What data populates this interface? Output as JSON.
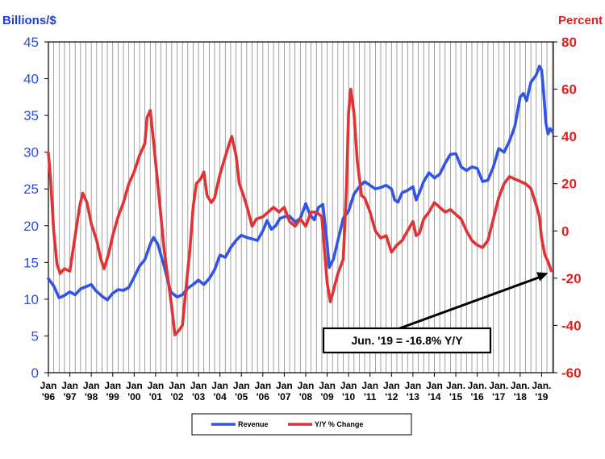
{
  "chart_data": {
    "type": "line",
    "left_axis": {
      "label": "Billions/$",
      "ylim": [
        0,
        45
      ],
      "ticks": [
        "0",
        "5",
        "10",
        "15",
        "20",
        "25",
        "30",
        "35",
        "40",
        "45"
      ]
    },
    "right_axis": {
      "label": "Percent",
      "ylim": [
        -60,
        80
      ],
      "ticks": [
        "-60",
        "-40",
        "-20",
        "0",
        "20",
        "40",
        "60",
        "80"
      ]
    },
    "xlim": [
      1996.0,
      2019.55
    ],
    "x_ticks": [
      {
        "l1": "Jan",
        "l2": "'96",
        "x": 1996
      },
      {
        "l1": "Jan",
        "l2": "'97",
        "x": 1997
      },
      {
        "l1": "Jan",
        "l2": "'98",
        "x": 1998
      },
      {
        "l1": "Jan",
        "l2": "'99",
        "x": 1999
      },
      {
        "l1": "Jan",
        "l2": "'00",
        "x": 2000
      },
      {
        "l1": "Jan",
        "l2": "'01",
        "x": 2001
      },
      {
        "l1": "Jan",
        "l2": "'02",
        "x": 2002
      },
      {
        "l1": "Jan",
        "l2": "'03",
        "x": 2003
      },
      {
        "l1": "Jan",
        "l2": "'04",
        "x": 2004
      },
      {
        "l1": "Jan",
        "l2": "'05",
        "x": 2005
      },
      {
        "l1": "Jan",
        "l2": "'06",
        "x": 2006
      },
      {
        "l1": "Jan",
        "l2": "'07",
        "x": 2007
      },
      {
        "l1": "Jan",
        "l2": "'08",
        "x": 2008
      },
      {
        "l1": "Jan",
        "l2": "'09",
        "x": 2009
      },
      {
        "l1": "Jan",
        "l2": "'10",
        "x": 2010
      },
      {
        "l1": "Jan",
        "l2": "'11",
        "x": 2011
      },
      {
        "l1": "Jan",
        "l2": "'12",
        "x": 2012
      },
      {
        "l1": "Jan",
        "l2": "'13",
        "x": 2013
      },
      {
        "l1": "Jan",
        "l2": "'14",
        "x": 2014
      },
      {
        "l1": "Jan.",
        "l2": "'15",
        "x": 2015
      },
      {
        "l1": "Jan.",
        "l2": "'16",
        "x": 2016
      },
      {
        "l1": "Jan.",
        "l2": "'17",
        "x": 2017
      },
      {
        "l1": "Jan.",
        "l2": "'18",
        "x": 2018
      },
      {
        "l1": "Jan.",
        "l2": "'19",
        "x": 2019
      }
    ],
    "grid": "vertical gridlines at each quarter",
    "legend_placement": "bottom-center",
    "series": [
      {
        "name": "Revenue",
        "axis": "left",
        "color": "#3355e6",
        "points": [
          [
            1996.0,
            12.8
          ],
          [
            1996.25,
            11.8
          ],
          [
            1996.5,
            10.2
          ],
          [
            1996.75,
            10.5
          ],
          [
            1997.0,
            11.0
          ],
          [
            1997.25,
            10.6
          ],
          [
            1997.5,
            11.4
          ],
          [
            1997.75,
            11.7
          ],
          [
            1998.0,
            12.0
          ],
          [
            1998.2,
            11.2
          ],
          [
            1998.5,
            10.4
          ],
          [
            1998.75,
            9.9
          ],
          [
            1999.0,
            10.8
          ],
          [
            1999.25,
            11.3
          ],
          [
            1999.5,
            11.2
          ],
          [
            1999.75,
            11.6
          ],
          [
            2000.0,
            13.0
          ],
          [
            2000.25,
            14.5
          ],
          [
            2000.5,
            15.4
          ],
          [
            2000.75,
            17.5
          ],
          [
            2000.9,
            18.4
          ],
          [
            2001.1,
            17.5
          ],
          [
            2001.4,
            14.5
          ],
          [
            2001.7,
            11.0
          ],
          [
            2002.0,
            10.3
          ],
          [
            2002.25,
            10.6
          ],
          [
            2002.5,
            11.5
          ],
          [
            2002.75,
            12.0
          ],
          [
            2003.0,
            12.6
          ],
          [
            2003.25,
            12.0
          ],
          [
            2003.5,
            12.8
          ],
          [
            2003.75,
            14.0
          ],
          [
            2004.0,
            16.0
          ],
          [
            2004.25,
            15.7
          ],
          [
            2004.5,
            17.0
          ],
          [
            2004.75,
            18.0
          ],
          [
            2005.0,
            18.7
          ],
          [
            2005.25,
            18.4
          ],
          [
            2005.5,
            18.2
          ],
          [
            2005.75,
            18.0
          ],
          [
            2006.0,
            19.3
          ],
          [
            2006.2,
            20.7
          ],
          [
            2006.4,
            19.5
          ],
          [
            2006.6,
            20.0
          ],
          [
            2006.8,
            21.0
          ],
          [
            2007.0,
            21.2
          ],
          [
            2007.25,
            21.3
          ],
          [
            2007.5,
            20.5
          ],
          [
            2007.75,
            21.0
          ],
          [
            2008.0,
            23.0
          ],
          [
            2008.2,
            21.5
          ],
          [
            2008.4,
            20.8
          ],
          [
            2008.6,
            22.5
          ],
          [
            2008.8,
            22.9
          ],
          [
            2009.0,
            17.5
          ],
          [
            2009.1,
            14.3
          ],
          [
            2009.3,
            15.5
          ],
          [
            2009.5,
            18.0
          ],
          [
            2009.75,
            21.0
          ],
          [
            2010.0,
            22.0
          ],
          [
            2010.25,
            24.3
          ],
          [
            2010.5,
            25.3
          ],
          [
            2010.75,
            26.0
          ],
          [
            2011.0,
            25.5
          ],
          [
            2011.25,
            25.0
          ],
          [
            2011.5,
            25.2
          ],
          [
            2011.75,
            25.5
          ],
          [
            2012.0,
            25.0
          ],
          [
            2012.15,
            23.5
          ],
          [
            2012.3,
            23.2
          ],
          [
            2012.5,
            24.5
          ],
          [
            2012.75,
            24.8
          ],
          [
            2013.0,
            25.3
          ],
          [
            2013.15,
            23.5
          ],
          [
            2013.3,
            24.5
          ],
          [
            2013.5,
            26.0
          ],
          [
            2013.75,
            27.2
          ],
          [
            2014.0,
            26.5
          ],
          [
            2014.25,
            27.0
          ],
          [
            2014.5,
            28.5
          ],
          [
            2014.75,
            29.7
          ],
          [
            2015.0,
            29.8
          ],
          [
            2015.25,
            28.0
          ],
          [
            2015.5,
            27.5
          ],
          [
            2015.75,
            28.0
          ],
          [
            2016.0,
            27.8
          ],
          [
            2016.25,
            26.0
          ],
          [
            2016.5,
            26.2
          ],
          [
            2016.75,
            28.0
          ],
          [
            2017.0,
            30.5
          ],
          [
            2017.25,
            30.0
          ],
          [
            2017.5,
            31.5
          ],
          [
            2017.75,
            33.5
          ],
          [
            2018.0,
            37.5
          ],
          [
            2018.15,
            38.0
          ],
          [
            2018.3,
            37.0
          ],
          [
            2018.5,
            39.5
          ],
          [
            2018.75,
            40.5
          ],
          [
            2018.9,
            41.7
          ],
          [
            2019.0,
            41.2
          ],
          [
            2019.1,
            38.0
          ],
          [
            2019.2,
            34.0
          ],
          [
            2019.3,
            32.5
          ],
          [
            2019.4,
            33.2
          ],
          [
            2019.5,
            32.8
          ]
        ]
      },
      {
        "name": "Y/Y % Change",
        "axis": "right",
        "color": "#e03333",
        "points": [
          [
            1996.0,
            33
          ],
          [
            1996.1,
            22
          ],
          [
            1996.25,
            0
          ],
          [
            1996.4,
            -14
          ],
          [
            1996.55,
            -18
          ],
          [
            1996.75,
            -16
          ],
          [
            1997.0,
            -17
          ],
          [
            1997.25,
            -2
          ],
          [
            1997.45,
            10
          ],
          [
            1997.6,
            16
          ],
          [
            1997.8,
            12
          ],
          [
            1998.0,
            3
          ],
          [
            1998.25,
            -4
          ],
          [
            1998.45,
            -12
          ],
          [
            1998.6,
            -16
          ],
          [
            1998.8,
            -10
          ],
          [
            1999.0,
            -2
          ],
          [
            1999.25,
            6
          ],
          [
            1999.5,
            12
          ],
          [
            1999.75,
            20
          ],
          [
            2000.0,
            25
          ],
          [
            2000.25,
            32
          ],
          [
            2000.5,
            37
          ],
          [
            2000.6,
            48
          ],
          [
            2000.75,
            51
          ],
          [
            2000.9,
            38
          ],
          [
            2001.1,
            20
          ],
          [
            2001.4,
            -8
          ],
          [
            2001.6,
            -22
          ],
          [
            2001.75,
            -32
          ],
          [
            2001.9,
            -44
          ],
          [
            2002.1,
            -42
          ],
          [
            2002.25,
            -40
          ],
          [
            2002.4,
            -26
          ],
          [
            2002.6,
            -8
          ],
          [
            2002.75,
            10
          ],
          [
            2002.9,
            20
          ],
          [
            2003.1,
            22
          ],
          [
            2003.25,
            25
          ],
          [
            2003.4,
            15
          ],
          [
            2003.6,
            12
          ],
          [
            2003.75,
            14
          ],
          [
            2004.0,
            24
          ],
          [
            2004.2,
            30
          ],
          [
            2004.4,
            36
          ],
          [
            2004.55,
            40
          ],
          [
            2004.75,
            32
          ],
          [
            2004.9,
            20
          ],
          [
            2005.1,
            15
          ],
          [
            2005.3,
            9
          ],
          [
            2005.5,
            2
          ],
          [
            2005.7,
            5
          ],
          [
            2006.0,
            6
          ],
          [
            2006.25,
            8
          ],
          [
            2006.5,
            10
          ],
          [
            2006.75,
            8
          ],
          [
            2007.0,
            10
          ],
          [
            2007.25,
            4
          ],
          [
            2007.5,
            2
          ],
          [
            2007.75,
            5
          ],
          [
            2008.0,
            2
          ],
          [
            2008.25,
            8
          ],
          [
            2008.5,
            8
          ],
          [
            2008.75,
            6
          ],
          [
            2009.0,
            -22
          ],
          [
            2009.15,
            -30
          ],
          [
            2009.3,
            -25
          ],
          [
            2009.5,
            -18
          ],
          [
            2009.75,
            -12
          ],
          [
            2009.9,
            18
          ],
          [
            2010.0,
            50
          ],
          [
            2010.1,
            60
          ],
          [
            2010.25,
            50
          ],
          [
            2010.4,
            30
          ],
          [
            2010.6,
            15
          ],
          [
            2010.75,
            14
          ],
          [
            2011.0,
            8
          ],
          [
            2011.25,
            0
          ],
          [
            2011.5,
            -3
          ],
          [
            2011.75,
            -2
          ],
          [
            2012.0,
            -9
          ],
          [
            2012.25,
            -6
          ],
          [
            2012.5,
            -4
          ],
          [
            2012.75,
            0
          ],
          [
            2013.0,
            4
          ],
          [
            2013.15,
            -2
          ],
          [
            2013.3,
            -1
          ],
          [
            2013.5,
            5
          ],
          [
            2013.75,
            8
          ],
          [
            2014.0,
            12
          ],
          [
            2014.25,
            10
          ],
          [
            2014.5,
            8
          ],
          [
            2014.75,
            9
          ],
          [
            2015.0,
            7
          ],
          [
            2015.25,
            5
          ],
          [
            2015.5,
            0
          ],
          [
            2015.75,
            -4
          ],
          [
            2016.0,
            -6
          ],
          [
            2016.25,
            -7
          ],
          [
            2016.5,
            -4
          ],
          [
            2016.75,
            5
          ],
          [
            2017.0,
            14
          ],
          [
            2017.25,
            20
          ],
          [
            2017.5,
            23
          ],
          [
            2017.75,
            22
          ],
          [
            2018.0,
            21
          ],
          [
            2018.25,
            20
          ],
          [
            2018.5,
            18
          ],
          [
            2018.75,
            11
          ],
          [
            2018.9,
            6
          ],
          [
            2019.0,
            -3
          ],
          [
            2019.15,
            -10
          ],
          [
            2019.3,
            -13
          ],
          [
            2019.45,
            -16.8
          ]
        ]
      }
    ],
    "annotation": {
      "text": "Jun. '19 = -16.8% Y/Y",
      "points_to": {
        "x": 2019.45,
        "y": -16.8,
        "axis": "right"
      }
    }
  }
}
